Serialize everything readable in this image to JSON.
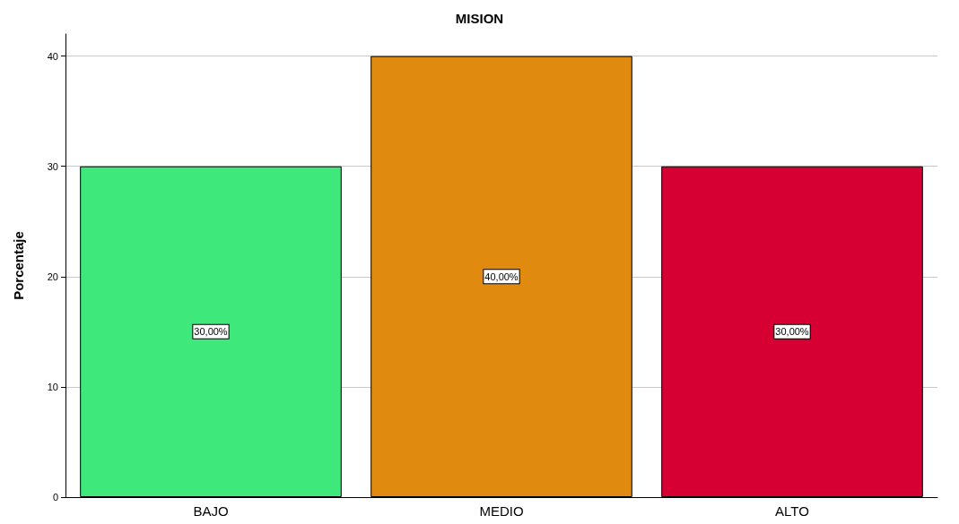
{
  "chart_data": {
    "type": "bar",
    "title": "MISION",
    "ylabel": "Porcentaje",
    "categories": [
      "BAJO",
      "MEDIO",
      "ALTO"
    ],
    "values": [
      30,
      40,
      30
    ],
    "colors": [
      "#3ee87a",
      "#e08a10",
      "#d60032"
    ],
    "value_labels": [
      "30,00%",
      "40,00%",
      "30,00%"
    ],
    "ylim": [
      0,
      42
    ],
    "yticks": [
      0,
      10,
      20,
      30,
      40
    ],
    "grid": "y"
  }
}
